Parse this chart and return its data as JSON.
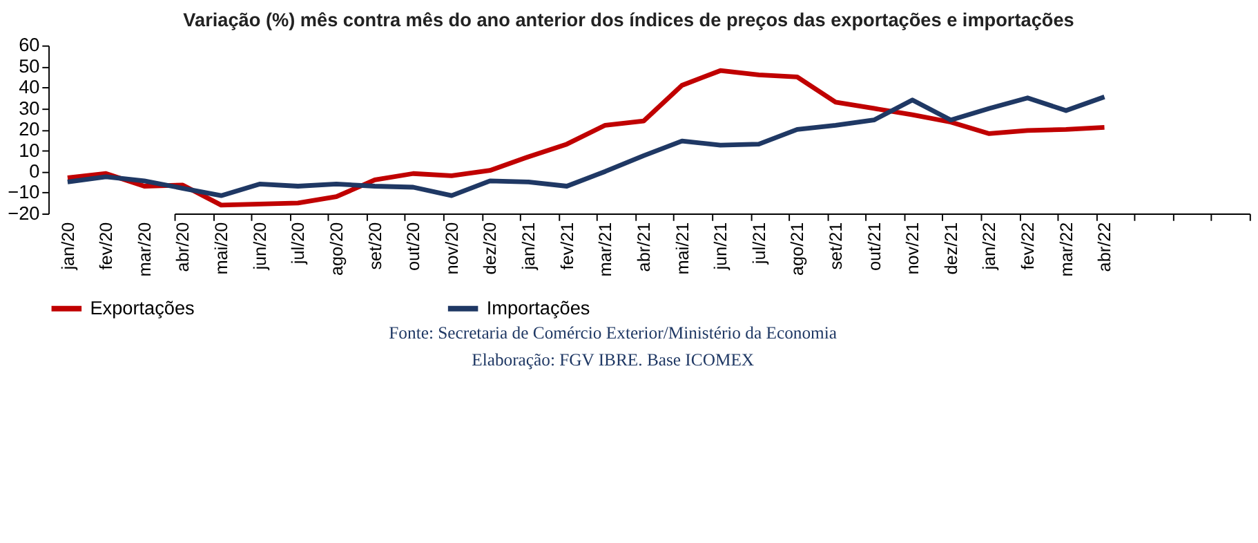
{
  "chart_data": {
    "type": "line",
    "title": "Variação (%) mês contra mês do ano anterior dos índices de preços das exportações e importações",
    "categories": [
      "jan/20",
      "fev/20",
      "mar/20",
      "abr/20",
      "mai/20",
      "jun/20",
      "jul/20",
      "ago/20",
      "set/20",
      "out/20",
      "nov/20",
      "dez/20",
      "jan/21",
      "fev/21",
      "mar/21",
      "abr/21",
      "mai/21",
      "jun/21",
      "jul/21",
      "ago/21",
      "set/21",
      "out/21",
      "nov/21",
      "dez/21",
      "jan/22",
      "fev/22",
      "mar/22",
      "abr/22"
    ],
    "series": [
      {
        "name": "Exportações",
        "color": "#c00000",
        "values": [
          -3,
          -1,
          -7,
          -6.5,
          -16,
          -15.5,
          -15,
          -12,
          -4,
          -1,
          -2,
          0.5,
          7,
          13,
          22,
          24,
          41,
          48,
          46,
          45,
          33,
          30,
          27,
          23.5,
          18,
          19.5,
          20,
          21
        ]
      },
      {
        "name": "Importações",
        "color": "#1f3864",
        "values": [
          -5,
          -2.5,
          -4.5,
          -8,
          -11.5,
          -6,
          -7,
          -6,
          -7,
          -7.5,
          -11.5,
          -4.5,
          -5,
          -7,
          0,
          7.5,
          14.5,
          12.5,
          13,
          20,
          22,
          24.5,
          34,
          24.5,
          30,
          35,
          29,
          35.5
        ]
      }
    ],
    "ylim": [
      -20,
      60
    ],
    "yticks": [
      -20,
      -10,
      0,
      10,
      20,
      30,
      40,
      50,
      60
    ],
    "grid": false,
    "legend": "bottom",
    "line_style": "solid",
    "marker": "none",
    "annotations": [
      "Fonte: Secretaria de Comércio Exterior/Ministério da Economia",
      "Elaboração: FGV IBRE. Base ICOMEX"
    ]
  }
}
